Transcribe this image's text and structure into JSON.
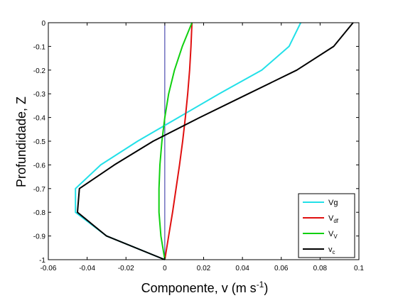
{
  "chart_data": {
    "type": "line",
    "xlabel": "Componente, v (m s",
    "xlabel_sup": "-1",
    "xlabel_end": ")",
    "ylabel": "Profundidade, Z",
    "xlim": [
      -0.06,
      0.1
    ],
    "ylim": [
      -1,
      0
    ],
    "xticks": [
      "-0.06",
      "-0.04",
      "-0.02",
      "0",
      "0.02",
      "0.04",
      "0.06",
      "0.08",
      "0.1"
    ],
    "xtick_values": [
      -0.06,
      -0.04,
      -0.02,
      0,
      0.02,
      0.04,
      0.06,
      0.08,
      0.1
    ],
    "yticks": [
      "0",
      "-0.1",
      "-0.2",
      "-0.3",
      "-0.4",
      "-0.5",
      "-0.6",
      "-0.7",
      "-0.8",
      "-0.9",
      "-1"
    ],
    "ytick_values": [
      0,
      -0.1,
      -0.2,
      -0.3,
      -0.4,
      -0.5,
      -0.6,
      -0.7,
      -0.8,
      -0.9,
      -1
    ],
    "grid": false,
    "legend_position": "bottom-right",
    "reference_line": {
      "x": 0,
      "color": "#2a2aa0"
    },
    "series": [
      {
        "name": "Vg",
        "sub": "",
        "color": "#22e0e8",
        "points": [
          [
            0.07,
            0
          ],
          [
            0.064,
            -0.1
          ],
          [
            0.05,
            -0.2
          ],
          [
            0.028,
            -0.3
          ],
          [
            0.007,
            -0.4
          ],
          [
            -0.014,
            -0.5
          ],
          [
            -0.033,
            -0.6
          ],
          [
            -0.046,
            -0.7
          ],
          [
            -0.046,
            -0.8
          ],
          [
            -0.03,
            -0.9
          ],
          [
            0,
            -1
          ]
        ]
      },
      {
        "name": "V",
        "sub": "df",
        "color": "#e01010",
        "points": [
          [
            0.014,
            0
          ],
          [
            0.0135,
            -0.1
          ],
          [
            0.0128,
            -0.2
          ],
          [
            0.0118,
            -0.3
          ],
          [
            0.0106,
            -0.4
          ],
          [
            0.0092,
            -0.5
          ],
          [
            0.0076,
            -0.6
          ],
          [
            0.0058,
            -0.7
          ],
          [
            0.004,
            -0.8
          ],
          [
            0.002,
            -0.9
          ],
          [
            0,
            -1
          ]
        ]
      },
      {
        "name": "V",
        "sub": "V",
        "color": "#10d010",
        "points": [
          [
            0.014,
            0
          ],
          [
            0.009,
            -0.1
          ],
          [
            0.005,
            -0.2
          ],
          [
            0.002,
            -0.3
          ],
          [
            0.0,
            -0.4
          ],
          [
            -0.0015,
            -0.5
          ],
          [
            -0.0025,
            -0.6
          ],
          [
            -0.003,
            -0.7
          ],
          [
            -0.003,
            -0.8
          ],
          [
            -0.002,
            -0.9
          ],
          [
            0,
            -1
          ]
        ]
      },
      {
        "name": "v",
        "sub": "c",
        "color": "#000000",
        "points": [
          [
            0.097,
            0
          ],
          [
            0.087,
            -0.1
          ],
          [
            0.068,
            -0.2
          ],
          [
            0.043,
            -0.3
          ],
          [
            0.018,
            -0.4
          ],
          [
            -0.006,
            -0.5
          ],
          [
            -0.026,
            -0.6
          ],
          [
            -0.044,
            -0.7
          ],
          [
            -0.045,
            -0.8
          ],
          [
            -0.03,
            -0.9
          ],
          [
            0,
            -1
          ]
        ]
      }
    ]
  }
}
